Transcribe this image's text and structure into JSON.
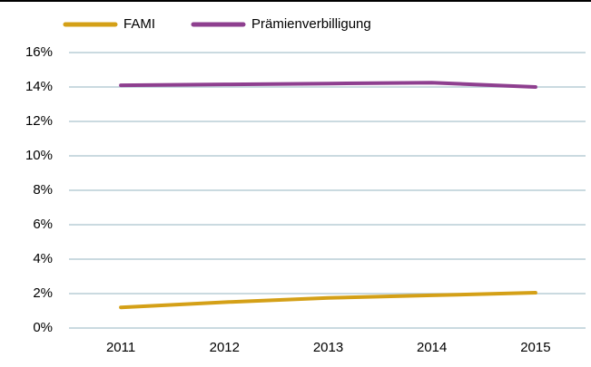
{
  "chart_data": {
    "type": "line",
    "categories": [
      "2011",
      "2012",
      "2013",
      "2014",
      "2015"
    ],
    "series": [
      {
        "name": "FAMI",
        "color": "#d4a017",
        "values": [
          1.2,
          1.5,
          1.75,
          1.9,
          2.05
        ]
      },
      {
        "name": "Prämienverbilligung",
        "color": "#8e3f8f",
        "values": [
          14.1,
          14.15,
          14.2,
          14.25,
          14.0
        ]
      }
    ],
    "ylim": [
      0,
      16
    ],
    "yticks": [
      {
        "value": 0,
        "label": "0%"
      },
      {
        "value": 2,
        "label": "2%"
      },
      {
        "value": 4,
        "label": "4%"
      },
      {
        "value": 6,
        "label": "6%"
      },
      {
        "value": 8,
        "label": "8%"
      },
      {
        "value": 10,
        "label": "10%"
      },
      {
        "value": 12,
        "label": "12%"
      },
      {
        "value": 14,
        "label": "14%"
      },
      {
        "value": 16,
        "label": "16%"
      }
    ],
    "grid": true
  }
}
